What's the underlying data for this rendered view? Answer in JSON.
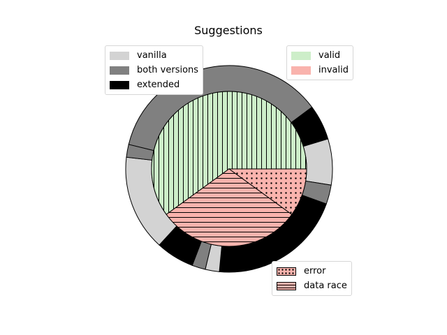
{
  "chart_data": {
    "type": "pie",
    "title": "Suggestions",
    "units": "percent",
    "outer_ring": [
      {
        "label": "both versions",
        "value": 36.0,
        "color": "#808080"
      },
      {
        "label": "extended",
        "value": 5.5,
        "color": "#000000"
      },
      {
        "label": "vanilla",
        "value": 7.2,
        "color": "#d3d3d3"
      },
      {
        "label": "both versions",
        "value": 3.0,
        "color": "#808080"
      },
      {
        "label": "extended",
        "value": 21.0,
        "color": "#000000"
      },
      {
        "label": "vanilla",
        "value": 2.2,
        "color": "#d3d3d3"
      },
      {
        "label": "both versions",
        "value": 2.1,
        "color": "#808080"
      },
      {
        "label": "extended",
        "value": 6.0,
        "color": "#000000"
      },
      {
        "label": "vanilla",
        "value": 15.0,
        "color": "#d3d3d3"
      },
      {
        "label": "both versions",
        "value": 2.0,
        "color": "#808080"
      }
    ],
    "inner_pie": [
      {
        "label": "valid",
        "value": 60.0,
        "color": "#cdeec9",
        "hatch": "vertical"
      },
      {
        "label": "data race",
        "value": 30.0,
        "color": "#f9b3ad",
        "hatch": "horizontal"
      },
      {
        "label": "error",
        "value": 10.0,
        "color": "#f9b3ad",
        "hatch": "dots"
      }
    ],
    "legends": [
      {
        "position": "top-left",
        "entries": [
          {
            "label": "vanilla",
            "color": "#d3d3d3"
          },
          {
            "label": "both versions",
            "color": "#808080"
          },
          {
            "label": "extended",
            "color": "#000000"
          }
        ]
      },
      {
        "position": "top-right",
        "entries": [
          {
            "label": "valid",
            "color": "#cdeec9"
          },
          {
            "label": "invalid",
            "color": "#f9b3ad"
          }
        ]
      },
      {
        "position": "bottom-right",
        "entries": [
          {
            "label": "error",
            "color": "#f9b3ad",
            "hatch": "dots"
          },
          {
            "label": "data race",
            "color": "#f9b3ad",
            "hatch": "horizontal"
          }
        ]
      }
    ]
  }
}
